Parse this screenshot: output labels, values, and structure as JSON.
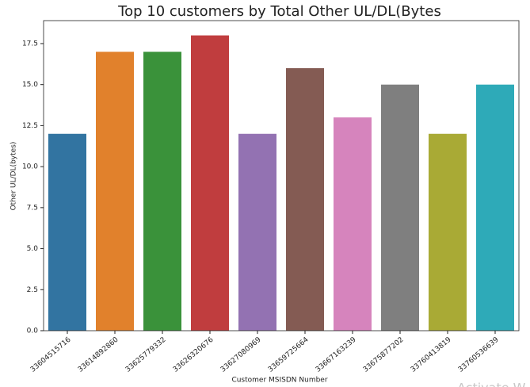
{
  "chart_data": {
    "type": "bar",
    "title": "Top 10 customers by Total Other UL/DL(Bytes",
    "xlabel": "Customer MSISDN Number",
    "ylabel": "Other UL/DL(bytes)",
    "categories": [
      "33604515716",
      "33614892860",
      "33625779332",
      "33626320676",
      "33627080969",
      "33659725664",
      "33667163239",
      "33675877202",
      "33760413819",
      "33760536639"
    ],
    "values": [
      12,
      17,
      17,
      18,
      12,
      16,
      13,
      15,
      12,
      15
    ],
    "colors": [
      "#3274a1",
      "#e1812c",
      "#3a923a",
      "#c03d3e",
      "#9372b2",
      "#845b53",
      "#d684bd",
      "#7f7f7f",
      "#a9aa35",
      "#2eaab8"
    ],
    "ylim": [
      0,
      18.9
    ],
    "yticks": [
      {
        "value": 0,
        "label": "0.0"
      },
      2.5,
      {
        "value": 5,
        "label": "5.0"
      },
      7.5,
      {
        "value": 10,
        "label": "10.0"
      },
      12.5,
      {
        "value": 15,
        "label": "15.0"
      },
      17.5
    ],
    "grid": false,
    "watermark": "Activate W"
  }
}
